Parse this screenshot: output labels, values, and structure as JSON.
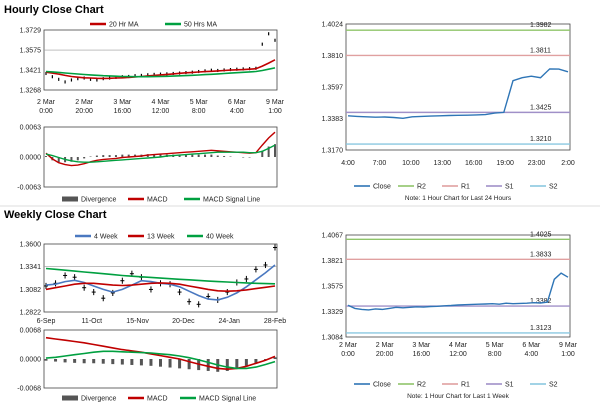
{
  "hourly_title": "Hourly Close Chart",
  "weekly_title": "Weekly Close Chart",
  "colors": {
    "ma20": "#c00000",
    "ma50": "#00a040",
    "close_weekly": "#000000",
    "wk4": "#4a78c0",
    "wk13": "#c00000",
    "wk40": "#00a040",
    "close": "#2e75b6",
    "r2": "#8fc46a",
    "r1": "#e0a0a0",
    "s1": "#a090c8",
    "s2": "#8ac8e0",
    "divergence": "#555555",
    "macd": "#c00000",
    "signal": "#00a040"
  },
  "chart_data": [
    {
      "id": "hourly-price",
      "type": "line",
      "legend": [
        "20 Hr MA",
        "50 Hrs MA"
      ],
      "y_ticks": [
        "1.3729",
        "1.3575",
        "1.3421",
        "1.3268"
      ],
      "ylim": [
        1.3268,
        1.3729
      ],
      "x_ticks": [
        [
          "2 Mar",
          "0:00"
        ],
        [
          "2 Mar",
          "20:00"
        ],
        [
          "3 Mar",
          "16:00"
        ],
        [
          "4 Mar",
          "12:00"
        ],
        [
          "5 Mar",
          "8:00"
        ],
        [
          "6 Mar",
          "4:00"
        ],
        [
          "9 Mar",
          "1:00"
        ]
      ],
      "series": [
        {
          "name": "Close",
          "values": [
            1.3395,
            1.337,
            1.335,
            1.333,
            1.3345,
            1.3355,
            1.336,
            1.335,
            1.3345,
            1.3355,
            1.336,
            1.3365,
            1.337,
            1.3372,
            1.3378,
            1.338,
            1.3385,
            1.3388,
            1.339,
            1.3392,
            1.3395,
            1.3398,
            1.3402,
            1.3405,
            1.341,
            1.3415,
            1.342,
            1.3418,
            1.3422,
            1.3425,
            1.3428,
            1.343,
            1.3432,
            1.3435,
            1.362,
            1.37,
            1.365
          ]
        },
        {
          "name": "20 Hr MA",
          "values": [
            1.3405,
            1.3398,
            1.339,
            1.338,
            1.3372,
            1.3366,
            1.3362,
            1.336,
            1.3358,
            1.3357,
            1.3358,
            1.336,
            1.3362,
            1.3365,
            1.3368,
            1.3372,
            1.3376,
            1.338,
            1.3384,
            1.3388,
            1.3392,
            1.3396,
            1.34,
            1.3403,
            1.3406,
            1.3409,
            1.3412,
            1.3415,
            1.3418,
            1.3421,
            1.3423,
            1.3425,
            1.3428,
            1.3432,
            1.3452,
            1.3475,
            1.35
          ]
        },
        {
          "name": "50 Hrs MA",
          "values": [
            1.341,
            1.3407,
            1.3403,
            1.3399,
            1.3395,
            1.3391,
            1.3387,
            1.3384,
            1.3381,
            1.3378,
            1.3376,
            1.3374,
            1.3372,
            1.3371,
            1.337,
            1.337,
            1.337,
            1.3371,
            1.3372,
            1.3373,
            1.3375,
            1.3377,
            1.3379,
            1.3381,
            1.3383,
            1.3386,
            1.3389,
            1.3392,
            1.3395,
            1.3398,
            1.3401,
            1.3404,
            1.3407,
            1.341,
            1.3418,
            1.3428,
            1.3438
          ]
        }
      ]
    },
    {
      "id": "hourly-macd",
      "type": "line",
      "legend": [
        "Divergence",
        "MACD",
        "MACD Signal Line"
      ],
      "y_ticks": [
        "0.0063",
        "0.0000",
        "-0.0063"
      ],
      "ylim": [
        -0.0063,
        0.0063
      ],
      "series": [
        {
          "name": "MACD",
          "values": [
            0.0008,
            -0.0004,
            -0.0012,
            -0.0016,
            -0.0018,
            -0.0017,
            -0.0014,
            -0.001,
            -0.0007,
            -0.0005,
            -0.0004,
            -0.0003,
            -0.0001,
            0.0,
            0.0001,
            0.0002,
            0.0004,
            0.0005,
            0.0006,
            0.0007,
            0.0008,
            0.0009,
            0.001,
            0.0011,
            0.0012,
            0.0013,
            0.0014,
            0.0013,
            0.0012,
            0.0011,
            0.001,
            0.0009,
            0.0008,
            0.0009,
            0.0025,
            0.004,
            0.0052
          ]
        },
        {
          "name": "MACD Signal Line",
          "values": [
            0.0006,
            0.0003,
            -0.0001,
            -0.0005,
            -0.0008,
            -0.001,
            -0.0011,
            -0.0011,
            -0.001,
            -0.0009,
            -0.0008,
            -0.0007,
            -0.0006,
            -0.0005,
            -0.0004,
            -0.0003,
            -0.0002,
            -0.0001,
            0.0,
            0.0002,
            0.0003,
            0.0004,
            0.0005,
            0.0006,
            0.0007,
            0.0008,
            0.0009,
            0.001,
            0.001,
            0.001,
            0.001,
            0.001,
            0.0009,
            0.0009,
            0.0012,
            0.0018,
            0.0025
          ]
        },
        {
          "name": "Divergence",
          "values": [
            0.0002,
            -0.0007,
            -0.0011,
            -0.0011,
            -0.001,
            -0.0007,
            -0.0003,
            0.0001,
            0.0003,
            0.0004,
            0.0004,
            0.0004,
            0.0005,
            0.0005,
            0.0005,
            0.0005,
            0.0006,
            0.0006,
            0.0006,
            0.0005,
            0.0005,
            0.0005,
            0.0005,
            0.0005,
            0.0005,
            0.0005,
            0.0005,
            0.0003,
            0.0002,
            0.0001,
            0.0,
            -0.0001,
            -0.0001,
            0.0,
            0.0013,
            0.0022,
            0.0027
          ]
        }
      ]
    },
    {
      "id": "hourly-pivots",
      "type": "line",
      "y_ticks": [
        "1.4024",
        "1.3810",
        "1.3597",
        "1.3383",
        "1.3170"
      ],
      "ylim": [
        1.317,
        1.4024
      ],
      "x_ticks": [
        "4:00",
        "7:00",
        "10:00",
        "13:00",
        "16:00",
        "19:00",
        "23:00",
        "2:00"
      ],
      "levels": [
        {
          "name": "R2",
          "value": 1.3982,
          "label": "1.3982"
        },
        {
          "name": "R1",
          "value": 1.3811,
          "label": "1.3811"
        },
        {
          "name": "S1",
          "value": 1.3425,
          "label": "1.3425"
        },
        {
          "name": "S2",
          "value": 1.321,
          "label": "1.3210"
        }
      ],
      "series": [
        {
          "name": "Close",
          "values": [
            1.3402,
            1.3398,
            1.3395,
            1.3392,
            1.3394,
            1.339,
            1.3385,
            1.3395,
            1.3398,
            1.34,
            1.3402,
            1.3404,
            1.3405,
            1.3406,
            1.3408,
            1.341,
            1.342,
            1.3425,
            1.364,
            1.366,
            1.367,
            1.366,
            1.372,
            1.3718,
            1.37
          ]
        }
      ],
      "legend": [
        "Close",
        "R2",
        "R1",
        "S1",
        "S2"
      ],
      "note": "Note: 1 Hour Chart for Last 24 Hours"
    },
    {
      "id": "weekly-price",
      "type": "line",
      "legend": [
        "4 Week",
        "13 Week",
        "40 Week"
      ],
      "y_ticks": [
        "1.3600",
        "1.3341",
        "1.3082",
        "1.2822"
      ],
      "ylim": [
        1.2822,
        1.36
      ],
      "x_ticks": [
        "6-Sep",
        "11-Oct",
        "15-Nov",
        "20-Dec",
        "24-Jan",
        "28-Feb"
      ],
      "series": [
        {
          "name": "Close",
          "values": [
            1.312,
            1.315,
            1.324,
            1.322,
            1.31,
            1.305,
            1.298,
            1.304,
            1.318,
            1.326,
            1.322,
            1.308,
            1.315,
            1.314,
            1.305,
            1.294,
            1.291,
            1.3,
            1.296,
            1.305,
            1.316,
            1.32,
            1.331,
            1.336,
            1.356
          ]
        },
        {
          "name": "4 Week",
          "values": [
            1.313,
            1.314,
            1.317,
            1.3185,
            1.316,
            1.312,
            1.308,
            1.305,
            1.308,
            1.313,
            1.318,
            1.317,
            1.315,
            1.314,
            1.311,
            1.306,
            1.301,
            1.297,
            1.296,
            1.299,
            1.304,
            1.311,
            1.319,
            1.327,
            1.336
          ]
        },
        {
          "name": "13 Week",
          "values": [
            1.308,
            1.31,
            1.312,
            1.314,
            1.315,
            1.315,
            1.314,
            1.313,
            1.3125,
            1.313,
            1.314,
            1.315,
            1.3155,
            1.315,
            1.314,
            1.312,
            1.31,
            1.308,
            1.3065,
            1.306,
            1.3065,
            1.3075,
            1.309,
            1.3105,
            1.312
          ]
        },
        {
          "name": "40 Week",
          "values": [
            1.332,
            1.331,
            1.33,
            1.329,
            1.328,
            1.327,
            1.326,
            1.325,
            1.324,
            1.3232,
            1.3225,
            1.3218,
            1.321,
            1.3203,
            1.3196,
            1.319,
            1.3183,
            1.3176,
            1.317,
            1.3165,
            1.316,
            1.3155,
            1.315,
            1.3147,
            1.3145
          ]
        }
      ]
    },
    {
      "id": "weekly-macd",
      "type": "line",
      "legend": [
        "Divergence",
        "MACD",
        "MACD Signal Line"
      ],
      "y_ticks": [
        "0.0068",
        "0.0000",
        "-0.0068"
      ],
      "ylim": [
        -0.0068,
        0.0068
      ],
      "series": [
        {
          "name": "MACD",
          "values": [
            0.005,
            0.0047,
            0.0044,
            0.0041,
            0.0038,
            0.0034,
            0.003,
            0.0026,
            0.0022,
            0.0019,
            0.0016,
            0.0012,
            0.0008,
            0.0004,
            0.0,
            -0.0006,
            -0.0012,
            -0.0017,
            -0.0022,
            -0.0024,
            -0.0022,
            -0.0017,
            -0.001,
            -0.0003,
            0.0006
          ]
        },
        {
          "name": "MACD Signal Line",
          "values": [
            0.0002,
            0.0004,
            0.0007,
            0.001,
            0.0013,
            0.0016,
            0.0018,
            0.0018,
            0.0017,
            0.0016,
            0.0015,
            0.0014,
            0.0012,
            0.001,
            0.0007,
            0.0003,
            -0.0002,
            -0.0008,
            -0.0014,
            -0.0019,
            -0.0022,
            -0.0022,
            -0.0019,
            -0.0013,
            -0.0006
          ]
        },
        {
          "name": "Divergence",
          "values": [
            -0.0004,
            -0.0006,
            -0.0008,
            -0.0009,
            -0.001,
            -0.001,
            -0.0011,
            -0.0012,
            -0.0013,
            -0.0014,
            -0.0015,
            -0.0016,
            -0.0018,
            -0.002,
            -0.0022,
            -0.0024,
            -0.0026,
            -0.0028,
            -0.003,
            -0.0028,
            -0.0022,
            -0.0016,
            -0.0009,
            -0.0002,
            0.0004
          ]
        }
      ]
    },
    {
      "id": "weekly-pivots",
      "type": "line",
      "y_ticks": [
        "1.4067",
        "1.3821",
        "1.3575",
        "1.3329",
        "1.3084"
      ],
      "ylim": [
        1.3084,
        1.4067
      ],
      "x_ticks": [
        [
          "2 Mar",
          "0:00"
        ],
        [
          "2 Mar",
          "20:00"
        ],
        [
          "3 Mar",
          "16:00"
        ],
        [
          "4 Mar",
          "12:00"
        ],
        [
          "5 Mar",
          "8:00"
        ],
        [
          "6 Mar",
          "4:00"
        ],
        [
          "9 Mar",
          "1:00"
        ]
      ],
      "levels": [
        {
          "name": "R2",
          "value": 1.4025,
          "label": "1.4025"
        },
        {
          "name": "R1",
          "value": 1.3833,
          "label": "1.3833"
        },
        {
          "name": "S1",
          "value": 1.3382,
          "label": "1.3382"
        },
        {
          "name": "S2",
          "value": 1.3123,
          "label": "1.3123"
        }
      ],
      "series": [
        {
          "name": "Close",
          "values": [
            1.339,
            1.336,
            1.335,
            1.3345,
            1.3355,
            1.335,
            1.336,
            1.337,
            1.3365,
            1.337,
            1.3375,
            1.3372,
            1.3378,
            1.338,
            1.3385,
            1.3388,
            1.3392,
            1.3395,
            1.3398,
            1.34,
            1.3402,
            1.3405,
            1.34,
            1.341,
            1.3405,
            1.3408,
            1.341,
            1.3415,
            1.3412,
            1.342,
            1.364,
            1.37,
            1.366
          ]
        }
      ],
      "legend": [
        "Close",
        "R2",
        "R1",
        "S1",
        "S2"
      ],
      "note": "Note: 1 Hour Chart for Last 1 Week"
    }
  ]
}
